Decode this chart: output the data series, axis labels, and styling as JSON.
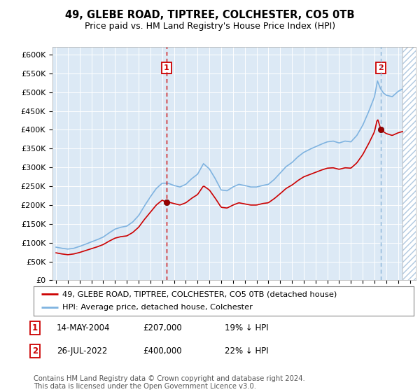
{
  "title": "49, GLEBE ROAD, TIPTREE, COLCHESTER, CO5 0TB",
  "subtitle": "Price paid vs. HM Land Registry's House Price Index (HPI)",
  "ylabel_ticks": [
    "£0",
    "£50K",
    "£100K",
    "£150K",
    "£200K",
    "£250K",
    "£300K",
    "£350K",
    "£400K",
    "£450K",
    "£500K",
    "£550K",
    "£600K"
  ],
  "ytick_values": [
    0,
    50000,
    100000,
    150000,
    200000,
    250000,
    300000,
    350000,
    400000,
    450000,
    500000,
    550000,
    600000
  ],
  "ylim": [
    0,
    620000
  ],
  "xlim_start": 1994.7,
  "xlim_end": 2025.5,
  "background_color": "#dce9f5",
  "grid_color": "#ffffff",
  "red_line_color": "#cc0000",
  "blue_line_color": "#7fb3e0",
  "sale1_x": 2004.37,
  "sale1_y": 207000,
  "sale2_x": 2022.55,
  "sale2_y": 400000,
  "legend_entry1": "49, GLEBE ROAD, TIPTREE, COLCHESTER, CO5 0TB (detached house)",
  "legend_entry2": "HPI: Average price, detached house, Colchester",
  "annotation1_date": "14-MAY-2004",
  "annotation1_price": "£207,000",
  "annotation1_hpi": "19% ↓ HPI",
  "annotation2_date": "26-JUL-2022",
  "annotation2_price": "£400,000",
  "annotation2_hpi": "22% ↓ HPI",
  "footnote": "Contains HM Land Registry data © Crown copyright and database right 2024.\nThis data is licensed under the Open Government Licence v3.0."
}
